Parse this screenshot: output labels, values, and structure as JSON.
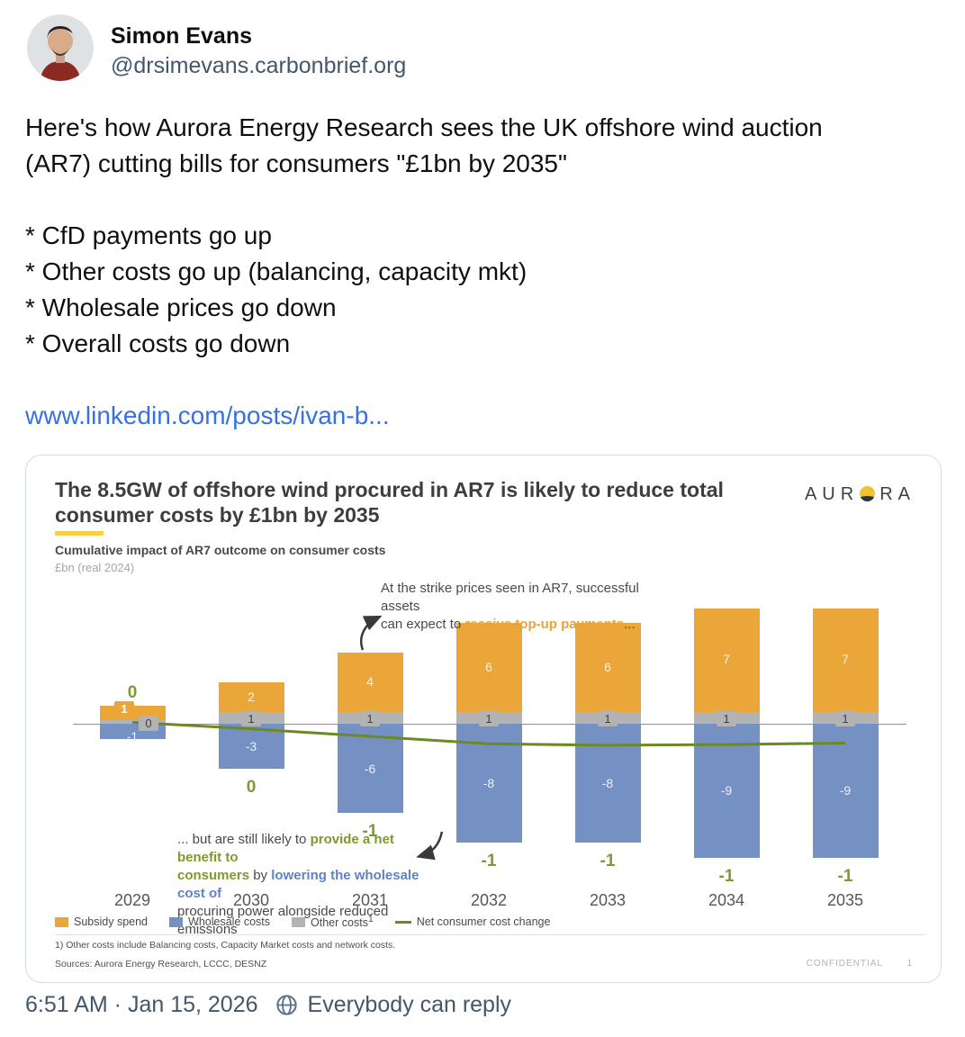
{
  "post": {
    "author": {
      "name": "Simon Evans",
      "handle": "@drsimevans.carbonbrief.org"
    },
    "body_lines": [
      "Here's how Aurora Energy Research sees the UK offshore wind auction",
      "(AR7) cutting bills for consumers \"£1bn by 2035\"",
      "",
      "* CfD payments go up",
      "* Other costs go up (balancing, capacity mkt)",
      "* Wholesale prices go down",
      "* Overall costs go down",
      ""
    ],
    "link_text": "www.linkedin.com/posts/ivan-b...",
    "footer": {
      "timestamp": "6:51 AM · Jan 15, 2026",
      "reply_setting": "Everybody can reply"
    },
    "colors": {
      "link": "#3671e0",
      "secondary_text": "#42576c"
    }
  },
  "chart": {
    "title_lines": [
      "The 8.5GW of offshore wind procured in AR7 is likely to reduce total",
      "consumer costs by £1bn by 2035"
    ],
    "logo": {
      "prefix": "AUR",
      "suffix": "RA"
    },
    "subtitle": "Cumulative impact of AR7 outcome on consumer costs",
    "units": "£bn (real 2024)",
    "annotation_top": [
      {
        "text": "At the strike prices seen in AR7, successful assets"
      },
      {
        "break": true
      },
      {
        "text": "can expect to "
      },
      {
        "text": "receive top-up payments",
        "style": "orange"
      },
      {
        "text": "..."
      }
    ],
    "annotation_bottom": [
      {
        "text": "... but are still likely to "
      },
      {
        "text": "provide a net benefit to",
        "style": "green"
      },
      {
        "break": true
      },
      {
        "text": "consumers",
        "style": "green"
      },
      {
        "text": " by "
      },
      {
        "text": "lowering the wholesale cost of",
        "style": "blue"
      },
      {
        "break": true
      },
      {
        "text": "procuring power alongside reduced emissions"
      }
    ],
    "legend": [
      {
        "swatch": "#eba63a",
        "shape": "rect",
        "label": "Subsidy spend"
      },
      {
        "swatch": "#7590c2",
        "shape": "rect",
        "label": "Wholesale costs"
      },
      {
        "swatch": "#b3b3b3",
        "shape": "rect",
        "label": "Other costs",
        "sup": "1"
      },
      {
        "swatch": "#6b8a23",
        "shape": "line",
        "label": "Net consumer cost change"
      }
    ],
    "footnote": "1) Other costs include Balancing costs, Capacity Market costs and network costs.",
    "sources": "Sources: Aurora Energy Research, LCCC, DESNZ",
    "confidential": "CONFIDENTIAL",
    "page_number": "1",
    "colors": {
      "subsidy": "#eba63a",
      "wholesale": "#7590c2",
      "other": "#b3b3b3",
      "net_line": "#6b8a23",
      "net_label": "#7d9a2e",
      "title_accent": "#f7ce46"
    }
  },
  "chart_data": {
    "type": "bar",
    "stacked": true,
    "title": "Cumulative impact of AR7 outcome on consumer costs",
    "ylabel": "£bn (real 2024)",
    "grid": false,
    "legend_position": "bottom",
    "categories": [
      "2029",
      "2030",
      "2031",
      "2032",
      "2033",
      "2034",
      "2035"
    ],
    "series": [
      {
        "name": "Subsidy spend",
        "type": "bar",
        "color": "#eba63a",
        "values": [
          1,
          2,
          4,
          6,
          6,
          7,
          7
        ]
      },
      {
        "name": "Wholesale costs",
        "type": "bar",
        "color": "#7590c2",
        "values": [
          -1,
          -3,
          -6,
          -8,
          -8,
          -9,
          -9
        ]
      },
      {
        "name": "Other costs",
        "type": "bar",
        "color": "#b3b3b3",
        "values": [
          0,
          1,
          1,
          1,
          1,
          1,
          1
        ]
      },
      {
        "name": "Net consumer cost change",
        "type": "line",
        "color": "#6b8a23",
        "values": [
          0,
          0,
          -1,
          -1,
          -1,
          -1,
          -1
        ],
        "line_values_approx": [
          0.1,
          -0.35,
          -0.85,
          -1.35,
          -1.45,
          -1.4,
          -1.3
        ]
      }
    ]
  }
}
